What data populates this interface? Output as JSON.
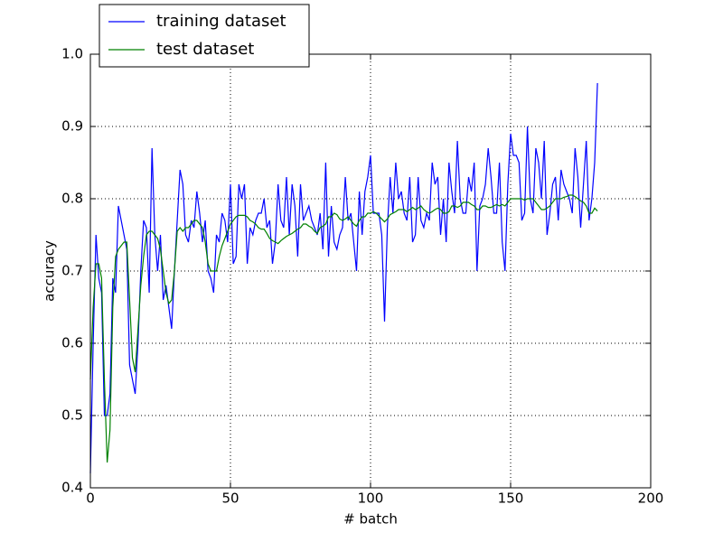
{
  "chart_data": {
    "type": "line",
    "xlabel": "# batch",
    "ylabel": "accuracy",
    "x": [
      0,
      1,
      2,
      3,
      4,
      5,
      6,
      7,
      8,
      9,
      10,
      11,
      12,
      13,
      14,
      15,
      16,
      17,
      18,
      19,
      20,
      21,
      22,
      23,
      24,
      25,
      26,
      27,
      28,
      29,
      30,
      31,
      32,
      33,
      34,
      35,
      36,
      37,
      38,
      39,
      40,
      41,
      42,
      43,
      44,
      45,
      46,
      47,
      48,
      49,
      50,
      51,
      52,
      53,
      54,
      55,
      56,
      57,
      58,
      59,
      60,
      61,
      62,
      63,
      64,
      65,
      66,
      67,
      68,
      69,
      70,
      71,
      72,
      73,
      74,
      75,
      76,
      77,
      78,
      79,
      80,
      81,
      82,
      83,
      84,
      85,
      86,
      87,
      88,
      89,
      90,
      91,
      92,
      93,
      94,
      95,
      96,
      97,
      98,
      99,
      100,
      101,
      102,
      103,
      104,
      105,
      106,
      107,
      108,
      109,
      110,
      111,
      112,
      113,
      114,
      115,
      116,
      117,
      118,
      119,
      120,
      121,
      122,
      123,
      124,
      125,
      126,
      127,
      128,
      129,
      130,
      131,
      132,
      133,
      134,
      135,
      136,
      137,
      138,
      139,
      140,
      141,
      142,
      143,
      144,
      145,
      146,
      147,
      148,
      149,
      150,
      151,
      152,
      153,
      154,
      155,
      156,
      157,
      158,
      159,
      160,
      161,
      162,
      163,
      164,
      165,
      166,
      167,
      168,
      169,
      170,
      171,
      172,
      173,
      174,
      175,
      176,
      177,
      178,
      179,
      180,
      181
    ],
    "series": [
      {
        "name": "training dataset",
        "color": "#0000ff",
        "values": [
          0.42,
          0.6,
          0.75,
          0.69,
          0.67,
          0.5,
          0.5,
          0.53,
          0.69,
          0.67,
          0.79,
          0.77,
          0.75,
          0.73,
          0.57,
          0.55,
          0.53,
          0.6,
          0.7,
          0.77,
          0.76,
          0.67,
          0.87,
          0.75,
          0.7,
          0.75,
          0.66,
          0.68,
          0.65,
          0.62,
          0.7,
          0.77,
          0.84,
          0.82,
          0.75,
          0.74,
          0.77,
          0.76,
          0.81,
          0.78,
          0.74,
          0.77,
          0.7,
          0.69,
          0.67,
          0.75,
          0.74,
          0.78,
          0.77,
          0.74,
          0.82,
          0.71,
          0.72,
          0.82,
          0.8,
          0.82,
          0.71,
          0.76,
          0.75,
          0.77,
          0.78,
          0.78,
          0.8,
          0.76,
          0.77,
          0.71,
          0.74,
          0.82,
          0.77,
          0.76,
          0.83,
          0.75,
          0.82,
          0.79,
          0.72,
          0.82,
          0.77,
          0.78,
          0.79,
          0.77,
          0.76,
          0.75,
          0.78,
          0.73,
          0.85,
          0.72,
          0.79,
          0.74,
          0.73,
          0.75,
          0.76,
          0.83,
          0.77,
          0.78,
          0.74,
          0.7,
          0.81,
          0.75,
          0.81,
          0.83,
          0.86,
          0.78,
          0.78,
          0.78,
          0.75,
          0.63,
          0.76,
          0.83,
          0.78,
          0.85,
          0.8,
          0.81,
          0.78,
          0.77,
          0.83,
          0.74,
          0.75,
          0.83,
          0.77,
          0.76,
          0.78,
          0.77,
          0.85,
          0.82,
          0.83,
          0.75,
          0.8,
          0.74,
          0.85,
          0.81,
          0.78,
          0.88,
          0.8,
          0.78,
          0.78,
          0.83,
          0.81,
          0.85,
          0.7,
          0.79,
          0.8,
          0.82,
          0.87,
          0.83,
          0.78,
          0.78,
          0.85,
          0.74,
          0.7,
          0.82,
          0.89,
          0.86,
          0.86,
          0.85,
          0.77,
          0.78,
          0.9,
          0.8,
          0.78,
          0.87,
          0.85,
          0.8,
          0.88,
          0.75,
          0.78,
          0.82,
          0.83,
          0.77,
          0.84,
          0.82,
          0.81,
          0.8,
          0.78,
          0.87,
          0.83,
          0.76,
          0.82,
          0.88,
          0.77,
          0.8,
          0.85,
          0.96
        ]
      },
      {
        "name": "test dataset",
        "color": "#008000",
        "values": [
          0.55,
          0.65,
          0.71,
          0.71,
          0.69,
          0.55,
          0.435,
          0.48,
          0.65,
          0.72,
          0.73,
          0.735,
          0.74,
          0.74,
          0.66,
          0.58,
          0.56,
          0.62,
          0.68,
          0.72,
          0.75,
          0.755,
          0.755,
          0.75,
          0.745,
          0.73,
          0.7,
          0.67,
          0.655,
          0.66,
          0.7,
          0.755,
          0.76,
          0.755,
          0.76,
          0.76,
          0.765,
          0.77,
          0.77,
          0.765,
          0.76,
          0.74,
          0.71,
          0.7,
          0.7,
          0.7,
          0.72,
          0.735,
          0.745,
          0.755,
          0.765,
          0.77,
          0.775,
          0.777,
          0.777,
          0.777,
          0.775,
          0.77,
          0.768,
          0.765,
          0.76,
          0.758,
          0.758,
          0.752,
          0.745,
          0.742,
          0.74,
          0.738,
          0.742,
          0.745,
          0.748,
          0.75,
          0.752,
          0.755,
          0.758,
          0.76,
          0.765,
          0.765,
          0.762,
          0.76,
          0.755,
          0.752,
          0.76,
          0.762,
          0.765,
          0.775,
          0.775,
          0.78,
          0.778,
          0.772,
          0.77,
          0.772,
          0.775,
          0.77,
          0.765,
          0.762,
          0.77,
          0.775,
          0.775,
          0.78,
          0.78,
          0.782,
          0.78,
          0.776,
          0.772,
          0.768,
          0.772,
          0.778,
          0.78,
          0.782,
          0.785,
          0.785,
          0.785,
          0.782,
          0.785,
          0.788,
          0.785,
          0.787,
          0.79,
          0.785,
          0.782,
          0.78,
          0.782,
          0.785,
          0.787,
          0.785,
          0.78,
          0.78,
          0.782,
          0.79,
          0.79,
          0.788,
          0.79,
          0.795,
          0.795,
          0.795,
          0.792,
          0.79,
          0.785,
          0.785,
          0.79,
          0.79,
          0.788,
          0.788,
          0.79,
          0.792,
          0.79,
          0.792,
          0.79,
          0.795,
          0.8,
          0.8,
          0.8,
          0.8,
          0.8,
          0.798,
          0.8,
          0.8,
          0.8,
          0.795,
          0.79,
          0.785,
          0.785,
          0.787,
          0.79,
          0.795,
          0.8,
          0.8,
          0.8,
          0.802,
          0.803,
          0.805,
          0.805,
          0.803,
          0.8,
          0.797,
          0.795,
          0.79,
          0.78,
          0.78,
          0.787,
          0.783
        ]
      }
    ],
    "xlim": [
      0,
      200
    ],
    "ylim": [
      0.4,
      1
    ],
    "xticks": [
      0,
      50,
      100,
      150,
      200
    ],
    "yticks": [
      0.4,
      0.5,
      0.6,
      0.7,
      0.8,
      0.9,
      {
        "value": 1,
        "label": "1.0"
      }
    ],
    "grid": true,
    "legend": "upper left"
  }
}
